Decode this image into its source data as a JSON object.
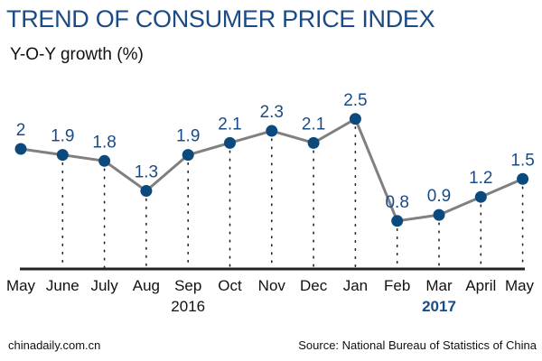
{
  "chart_data": {
    "type": "line",
    "title": "TREND OF CONSUMER PRICE INDEX",
    "ylabel": "Y-O-Y growth (%)",
    "categories": [
      "May",
      "June",
      "July",
      "Aug",
      "Sep",
      "Oct",
      "Nov",
      "Dec",
      "Jan",
      "Feb",
      "Mar",
      "April",
      "May"
    ],
    "values": [
      2,
      1.9,
      1.8,
      1.3,
      1.9,
      2.1,
      2.3,
      2.1,
      2.5,
      0.8,
      0.9,
      1.2,
      1.5
    ],
    "value_labels": [
      "2",
      "1.9",
      "1.8",
      "1.3",
      "1.9",
      "2.1",
      "2.3",
      "2.1",
      "2.5",
      "0.8",
      "0.9",
      "1.2",
      "1.5"
    ],
    "year_labels": [
      {
        "label": "2016",
        "highlight": false
      },
      {
        "label": "2017",
        "highlight": true
      }
    ],
    "ylim": [
      0,
      3
    ],
    "grid": false,
    "colors": {
      "title": "#1b4b86",
      "marker": "#0c4a7e",
      "line": "#808080",
      "label": "#1b4b86",
      "year_2017": "#1b4b86"
    }
  },
  "footer": {
    "credit": "chinadaily.com.cn",
    "source": "Source: National Bureau of Statistics of China"
  }
}
